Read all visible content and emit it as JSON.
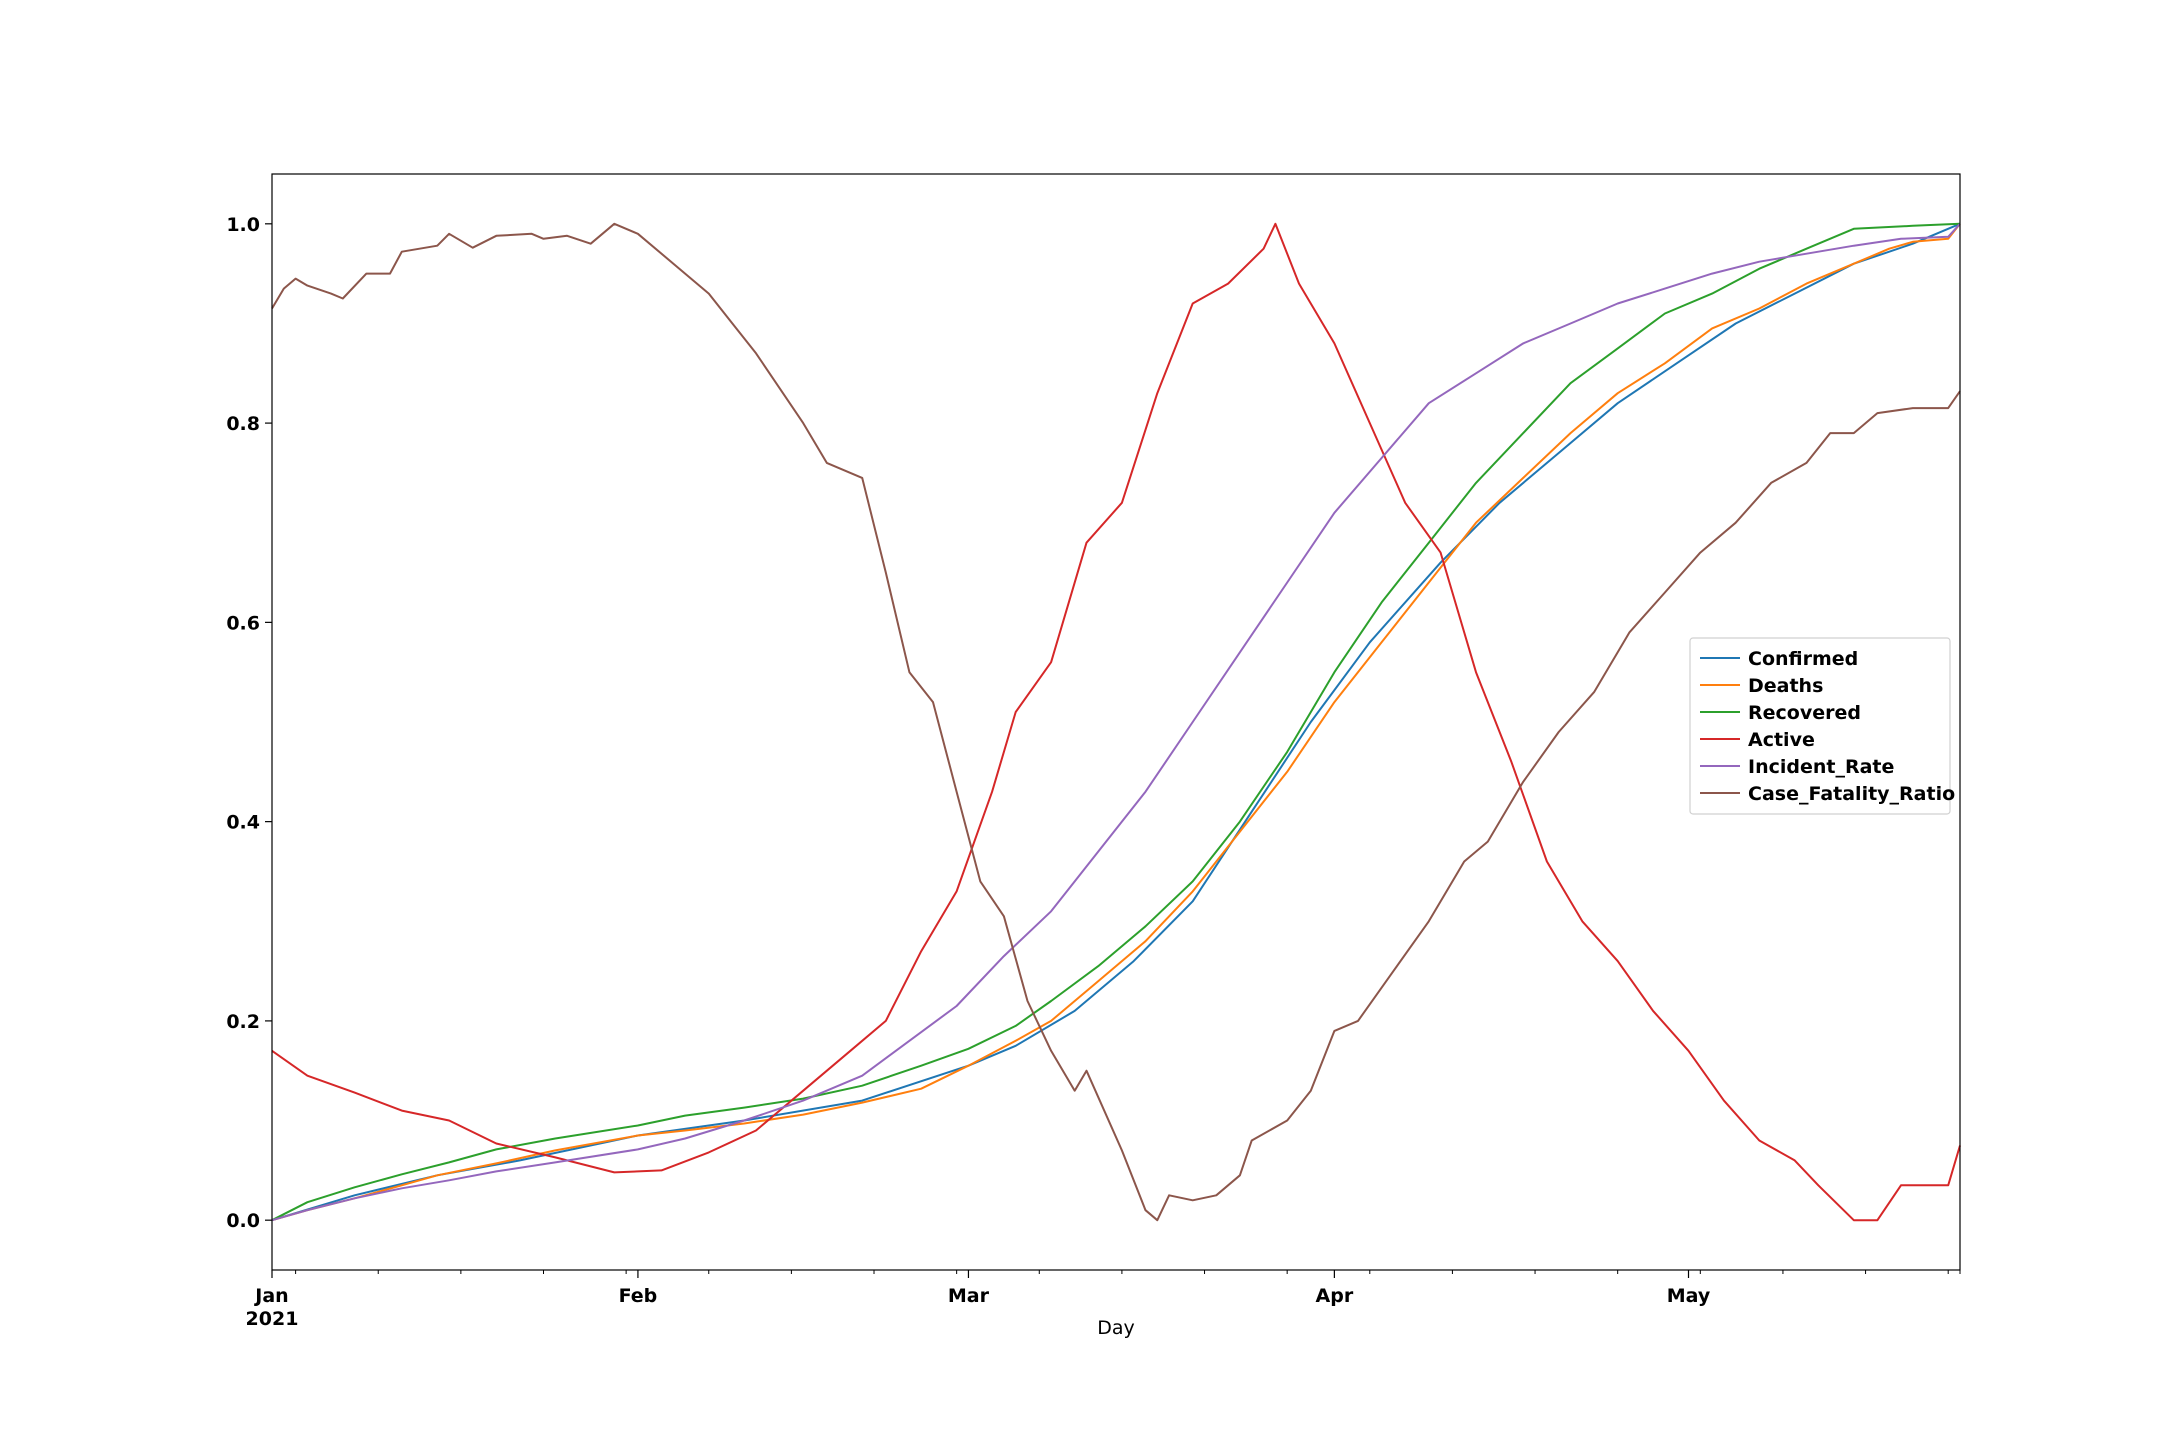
{
  "chart_data": {
    "type": "line",
    "title": "",
    "xlabel": "Day",
    "ylabel": "",
    "x_start": "2021-01-01",
    "x_end": "2021-05-24",
    "xlim": [
      "2021-01-01",
      "2021-05-24"
    ],
    "ylim": [
      -0.05,
      1.05
    ],
    "y_ticks": [
      "0.0",
      "0.2",
      "0.4",
      "0.6",
      "0.8",
      "1.0"
    ],
    "x_ticks": [
      {
        "date": "2021-01-01",
        "label": "Jan",
        "sublabel": "2021"
      },
      {
        "date": "2021-02-01",
        "label": "Feb",
        "sublabel": ""
      },
      {
        "date": "2021-03-01",
        "label": "Mar",
        "sublabel": ""
      },
      {
        "date": "2021-04-01",
        "label": "Apr",
        "sublabel": ""
      },
      {
        "date": "2021-05-01",
        "label": "May",
        "sublabel": ""
      }
    ],
    "grid": false,
    "legend_position": "center-right",
    "series": [
      {
        "name": "Confirmed",
        "color": "#1f77b4",
        "points": [
          [
            "2021-01-01",
            0.0
          ],
          [
            "2021-01-08",
            0.025
          ],
          [
            "2021-01-15",
            0.045
          ],
          [
            "2021-01-22",
            0.06
          ],
          [
            "2021-02-01",
            0.085
          ],
          [
            "2021-02-10",
            0.1
          ],
          [
            "2021-02-20",
            0.12
          ],
          [
            "2021-03-01",
            0.155
          ],
          [
            "2021-03-05",
            0.175
          ],
          [
            "2021-03-10",
            0.21
          ],
          [
            "2021-03-15",
            0.26
          ],
          [
            "2021-03-20",
            0.32
          ],
          [
            "2021-03-25",
            0.41
          ],
          [
            "2021-03-30",
            0.5
          ],
          [
            "2021-04-04",
            0.58
          ],
          [
            "2021-04-10",
            0.66
          ],
          [
            "2021-04-15",
            0.72
          ],
          [
            "2021-04-20",
            0.77
          ],
          [
            "2021-04-25",
            0.82
          ],
          [
            "2021-04-30",
            0.86
          ],
          [
            "2021-05-05",
            0.9
          ],
          [
            "2021-05-10",
            0.93
          ],
          [
            "2021-05-15",
            0.96
          ],
          [
            "2021-05-20",
            0.98
          ],
          [
            "2021-05-24",
            1.0
          ]
        ]
      },
      {
        "name": "Deaths",
        "color": "#ff7f0e",
        "points": [
          [
            "2021-01-01",
            0.0
          ],
          [
            "2021-01-04",
            0.01
          ],
          [
            "2021-01-08",
            0.022
          ],
          [
            "2021-01-12",
            0.035
          ],
          [
            "2021-01-15",
            0.045
          ],
          [
            "2021-01-20",
            0.057
          ],
          [
            "2021-01-25",
            0.07
          ],
          [
            "2021-02-01",
            0.085
          ],
          [
            "2021-02-05",
            0.09
          ],
          [
            "2021-02-10",
            0.097
          ],
          [
            "2021-02-15",
            0.106
          ],
          [
            "2021-02-20",
            0.118
          ],
          [
            "2021-02-25",
            0.132
          ],
          [
            "2021-03-01",
            0.155
          ],
          [
            "2021-03-05",
            0.18
          ],
          [
            "2021-03-08",
            0.2
          ],
          [
            "2021-03-12",
            0.24
          ],
          [
            "2021-03-16",
            0.28
          ],
          [
            "2021-03-20",
            0.33
          ],
          [
            "2021-03-24",
            0.39
          ],
          [
            "2021-03-28",
            0.45
          ],
          [
            "2021-04-01",
            0.52
          ],
          [
            "2021-04-05",
            0.58
          ],
          [
            "2021-04-09",
            0.64
          ],
          [
            "2021-04-13",
            0.7
          ],
          [
            "2021-04-17",
            0.745
          ],
          [
            "2021-04-21",
            0.79
          ],
          [
            "2021-04-25",
            0.83
          ],
          [
            "2021-04-29",
            0.86
          ],
          [
            "2021-05-03",
            0.895
          ],
          [
            "2021-05-07",
            0.915
          ],
          [
            "2021-05-11",
            0.94
          ],
          [
            "2021-05-15",
            0.96
          ],
          [
            "2021-05-18",
            0.975
          ],
          [
            "2021-05-20",
            0.982
          ],
          [
            "2021-05-23",
            0.985
          ],
          [
            "2021-05-24",
            1.0
          ]
        ]
      },
      {
        "name": "Recovered",
        "color": "#2ca02c",
        "points": [
          [
            "2021-01-01",
            0.0
          ],
          [
            "2021-01-04",
            0.018
          ],
          [
            "2021-01-08",
            0.033
          ],
          [
            "2021-01-12",
            0.046
          ],
          [
            "2021-01-16",
            0.058
          ],
          [
            "2021-01-20",
            0.071
          ],
          [
            "2021-01-25",
            0.082
          ],
          [
            "2021-02-01",
            0.095
          ],
          [
            "2021-02-05",
            0.105
          ],
          [
            "2021-02-10",
            0.113
          ],
          [
            "2021-02-15",
            0.122
          ],
          [
            "2021-02-20",
            0.135
          ],
          [
            "2021-02-25",
            0.155
          ],
          [
            "2021-03-01",
            0.172
          ],
          [
            "2021-03-05",
            0.195
          ],
          [
            "2021-03-08",
            0.22
          ],
          [
            "2021-03-12",
            0.255
          ],
          [
            "2021-03-16",
            0.295
          ],
          [
            "2021-03-20",
            0.34
          ],
          [
            "2021-03-24",
            0.4
          ],
          [
            "2021-03-28",
            0.47
          ],
          [
            "2021-04-01",
            0.55
          ],
          [
            "2021-04-05",
            0.62
          ],
          [
            "2021-04-09",
            0.68
          ],
          [
            "2021-04-13",
            0.74
          ],
          [
            "2021-04-17",
            0.79
          ],
          [
            "2021-04-21",
            0.84
          ],
          [
            "2021-04-25",
            0.875
          ],
          [
            "2021-04-29",
            0.91
          ],
          [
            "2021-05-03",
            0.93
          ],
          [
            "2021-05-07",
            0.955
          ],
          [
            "2021-05-11",
            0.975
          ],
          [
            "2021-05-15",
            0.995
          ],
          [
            "2021-05-20",
            0.998
          ],
          [
            "2021-05-24",
            1.0
          ]
        ]
      },
      {
        "name": "Active",
        "color": "#d62728",
        "points": [
          [
            "2021-01-01",
            0.17
          ],
          [
            "2021-01-04",
            0.145
          ],
          [
            "2021-01-08",
            0.128
          ],
          [
            "2021-01-12",
            0.11
          ],
          [
            "2021-01-16",
            0.1
          ],
          [
            "2021-01-20",
            0.077
          ],
          [
            "2021-01-25",
            0.063
          ],
          [
            "2021-01-30",
            0.048
          ],
          [
            "2021-02-03",
            0.05
          ],
          [
            "2021-02-07",
            0.068
          ],
          [
            "2021-02-11",
            0.09
          ],
          [
            "2021-02-15",
            0.13
          ],
          [
            "2021-02-19",
            0.17
          ],
          [
            "2021-02-22",
            0.2
          ],
          [
            "2021-02-25",
            0.27
          ],
          [
            "2021-02-28",
            0.33
          ],
          [
            "2021-03-03",
            0.43
          ],
          [
            "2021-03-05",
            0.51
          ],
          [
            "2021-03-08",
            0.56
          ],
          [
            "2021-03-11",
            0.68
          ],
          [
            "2021-03-14",
            0.72
          ],
          [
            "2021-03-17",
            0.83
          ],
          [
            "2021-03-20",
            0.92
          ],
          [
            "2021-03-23",
            0.94
          ],
          [
            "2021-03-26",
            0.975
          ],
          [
            "2021-03-27",
            1.0
          ],
          [
            "2021-03-29",
            0.94
          ],
          [
            "2021-04-01",
            0.88
          ],
          [
            "2021-04-04",
            0.8
          ],
          [
            "2021-04-07",
            0.72
          ],
          [
            "2021-04-10",
            0.67
          ],
          [
            "2021-04-13",
            0.55
          ],
          [
            "2021-04-16",
            0.46
          ],
          [
            "2021-04-19",
            0.36
          ],
          [
            "2021-04-22",
            0.3
          ],
          [
            "2021-04-25",
            0.26
          ],
          [
            "2021-04-28",
            0.21
          ],
          [
            "2021-05-01",
            0.17
          ],
          [
            "2021-05-04",
            0.12
          ],
          [
            "2021-05-07",
            0.08
          ],
          [
            "2021-05-10",
            0.06
          ],
          [
            "2021-05-12",
            0.035
          ],
          [
            "2021-05-15",
            0.0
          ],
          [
            "2021-05-17",
            0.0
          ],
          [
            "2021-05-19",
            0.035
          ],
          [
            "2021-05-23",
            0.035
          ],
          [
            "2021-05-24",
            0.075
          ]
        ]
      },
      {
        "name": "Incident_Rate",
        "color": "#9467bd",
        "points": [
          [
            "2021-01-01",
            0.0
          ],
          [
            "2021-01-04",
            0.01
          ],
          [
            "2021-01-08",
            0.022
          ],
          [
            "2021-01-12",
            0.032
          ],
          [
            "2021-01-16",
            0.04
          ],
          [
            "2021-01-20",
            0.049
          ],
          [
            "2021-01-25",
            0.058
          ],
          [
            "2021-02-01",
            0.071
          ],
          [
            "2021-02-05",
            0.082
          ],
          [
            "2021-02-10",
            0.1
          ],
          [
            "2021-02-15",
            0.12
          ],
          [
            "2021-02-20",
            0.145
          ],
          [
            "2021-02-24",
            0.18
          ],
          [
            "2021-02-28",
            0.215
          ],
          [
            "2021-03-04",
            0.265
          ],
          [
            "2021-03-08",
            0.31
          ],
          [
            "2021-03-12",
            0.37
          ],
          [
            "2021-03-16",
            0.43
          ],
          [
            "2021-03-20",
            0.5
          ],
          [
            "2021-03-24",
            0.57
          ],
          [
            "2021-03-28",
            0.64
          ],
          [
            "2021-04-01",
            0.71
          ],
          [
            "2021-04-05",
            0.765
          ],
          [
            "2021-04-09",
            0.82
          ],
          [
            "2021-04-13",
            0.85
          ],
          [
            "2021-04-17",
            0.88
          ],
          [
            "2021-04-21",
            0.9
          ],
          [
            "2021-04-25",
            0.92
          ],
          [
            "2021-04-29",
            0.935
          ],
          [
            "2021-05-03",
            0.95
          ],
          [
            "2021-05-07",
            0.962
          ],
          [
            "2021-05-11",
            0.97
          ],
          [
            "2021-05-15",
            0.978
          ],
          [
            "2021-05-19",
            0.985
          ],
          [
            "2021-05-23",
            0.987
          ],
          [
            "2021-05-24",
            1.0
          ]
        ]
      },
      {
        "name": "Case_Fatality_Ratio",
        "color": "#8c564b",
        "points": [
          [
            "2021-01-01",
            0.915
          ],
          [
            "2021-01-02",
            0.935
          ],
          [
            "2021-01-03",
            0.945
          ],
          [
            "2021-01-04",
            0.938
          ],
          [
            "2021-01-06",
            0.93
          ],
          [
            "2021-01-07",
            0.925
          ],
          [
            "2021-01-09",
            0.95
          ],
          [
            "2021-01-11",
            0.95
          ],
          [
            "2021-01-12",
            0.972
          ],
          [
            "2021-01-15",
            0.978
          ],
          [
            "2021-01-16",
            0.99
          ],
          [
            "2021-01-18",
            0.976
          ],
          [
            "2021-01-20",
            0.988
          ],
          [
            "2021-01-23",
            0.99
          ],
          [
            "2021-01-24",
            0.985
          ],
          [
            "2021-01-26",
            0.988
          ],
          [
            "2021-01-28",
            0.98
          ],
          [
            "2021-01-30",
            1.0
          ],
          [
            "2021-02-01",
            0.99
          ],
          [
            "2021-02-05",
            0.95
          ],
          [
            "2021-02-07",
            0.93
          ],
          [
            "2021-02-09",
            0.9
          ],
          [
            "2021-02-11",
            0.87
          ],
          [
            "2021-02-13",
            0.835
          ],
          [
            "2021-02-15",
            0.8
          ],
          [
            "2021-02-17",
            0.76
          ],
          [
            "2021-02-19",
            0.75
          ],
          [
            "2021-02-20",
            0.745
          ],
          [
            "2021-02-22",
            0.65
          ],
          [
            "2021-02-24",
            0.55
          ],
          [
            "2021-02-26",
            0.52
          ],
          [
            "2021-02-28",
            0.43
          ],
          [
            "2021-03-02",
            0.34
          ],
          [
            "2021-03-04",
            0.305
          ],
          [
            "2021-03-06",
            0.22
          ],
          [
            "2021-03-08",
            0.17
          ],
          [
            "2021-03-10",
            0.13
          ],
          [
            "2021-03-11",
            0.15
          ],
          [
            "2021-03-14",
            0.07
          ],
          [
            "2021-03-16",
            0.01
          ],
          [
            "2021-03-17",
            0.0
          ],
          [
            "2021-03-18",
            0.025
          ],
          [
            "2021-03-20",
            0.02
          ],
          [
            "2021-03-22",
            0.025
          ],
          [
            "2021-03-24",
            0.045
          ],
          [
            "2021-03-25",
            0.08
          ],
          [
            "2021-03-28",
            0.1
          ],
          [
            "2021-03-30",
            0.13
          ],
          [
            "2021-04-01",
            0.19
          ],
          [
            "2021-04-03",
            0.2
          ],
          [
            "2021-04-06",
            0.25
          ],
          [
            "2021-04-09",
            0.3
          ],
          [
            "2021-04-12",
            0.36
          ],
          [
            "2021-04-14",
            0.38
          ],
          [
            "2021-04-17",
            0.44
          ],
          [
            "2021-04-20",
            0.49
          ],
          [
            "2021-04-23",
            0.53
          ],
          [
            "2021-04-26",
            0.59
          ],
          [
            "2021-04-29",
            0.63
          ],
          [
            "2021-05-02",
            0.67
          ],
          [
            "2021-05-05",
            0.7
          ],
          [
            "2021-05-08",
            0.74
          ],
          [
            "2021-05-11",
            0.76
          ],
          [
            "2021-05-13",
            0.79
          ],
          [
            "2021-05-15",
            0.79
          ],
          [
            "2021-05-17",
            0.81
          ],
          [
            "2021-05-20",
            0.815
          ],
          [
            "2021-05-23",
            0.815
          ],
          [
            "2021-05-24",
            0.832
          ]
        ]
      }
    ]
  }
}
